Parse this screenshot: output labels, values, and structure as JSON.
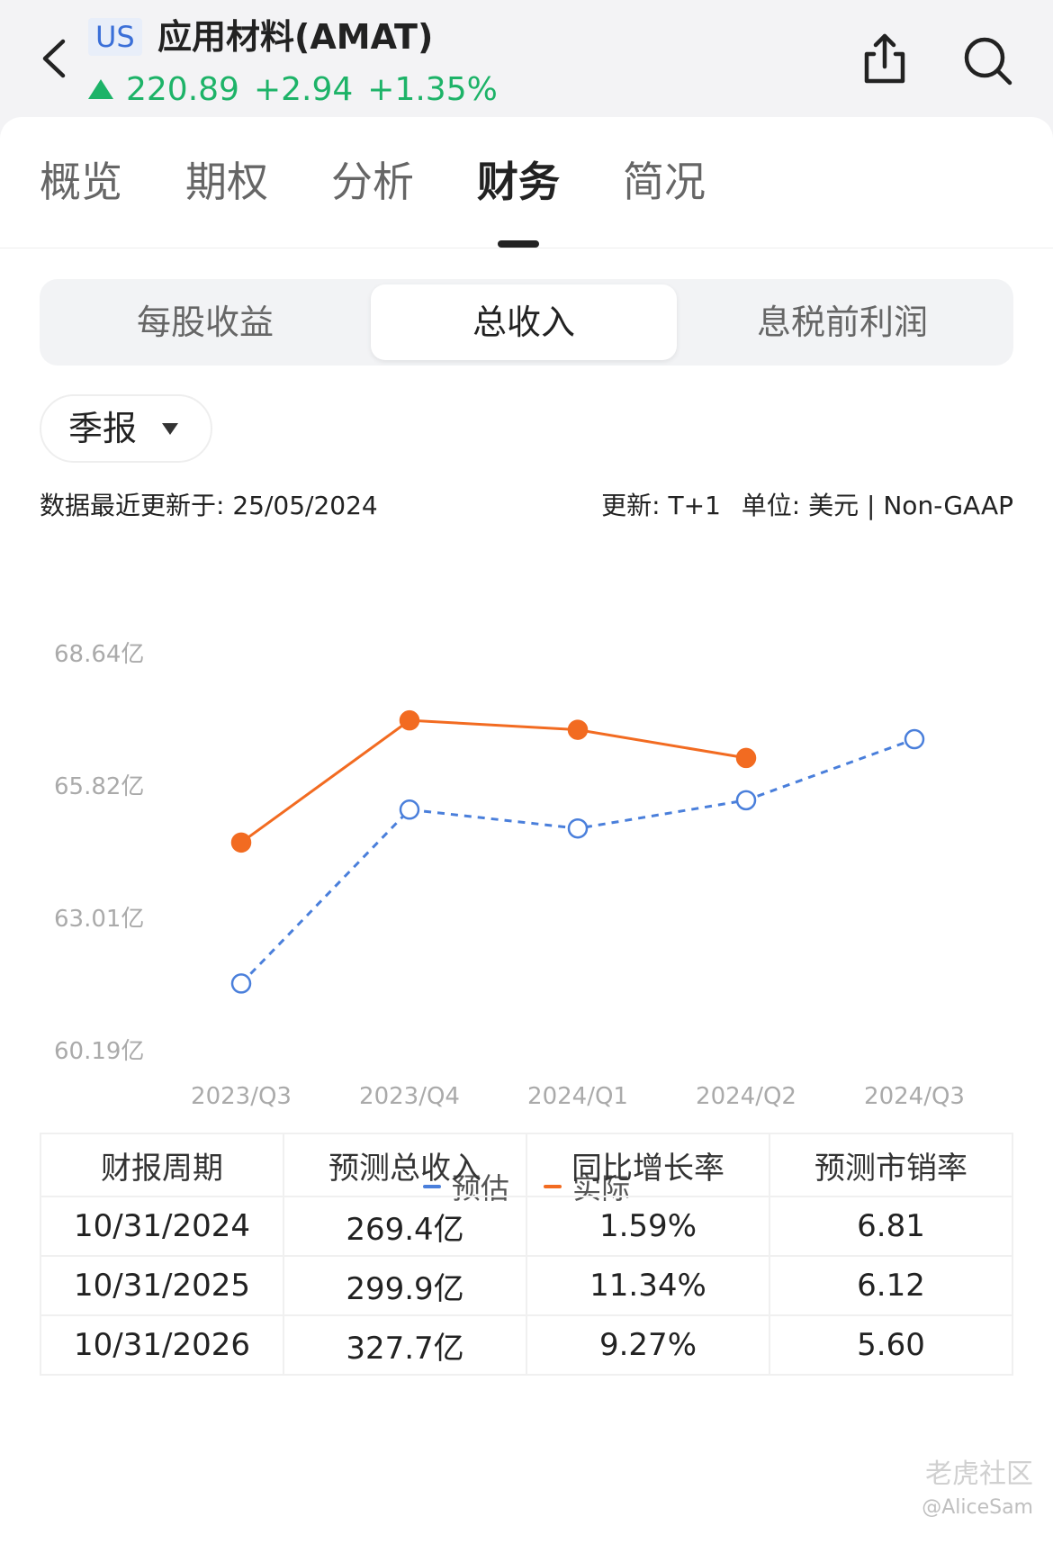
{
  "header": {
    "market_badge": "US",
    "stock_name": "应用材料(AMAT)",
    "price": "220.89",
    "change": "+2.94",
    "change_pct": "+1.35%",
    "icons": [
      "back-icon",
      "share-icon",
      "search-icon"
    ]
  },
  "tabs": [
    {
      "label": "概览"
    },
    {
      "label": "期权"
    },
    {
      "label": "分析"
    },
    {
      "label": "财务",
      "active": true
    },
    {
      "label": "简况"
    }
  ],
  "segments": [
    {
      "label": "每股收益"
    },
    {
      "label": "总收入",
      "active": true
    },
    {
      "label": "息税前利润"
    }
  ],
  "period": {
    "label": "季报"
  },
  "meta": {
    "updated": "数据最近更新于: 25/05/2024",
    "update_freq": "更新: T+1",
    "unit": "单位: 美元 | Non-GAAP"
  },
  "chart_data": {
    "type": "line",
    "categories": [
      "2023/Q3",
      "2023/Q4",
      "2024/Q1",
      "2024/Q2",
      "2024/Q3"
    ],
    "y_ticks": [
      "68.64亿",
      "65.82亿",
      "63.01亿",
      "60.19亿"
    ],
    "ylim": [
      60.19,
      68.64
    ],
    "y_unit": "亿",
    "series": [
      {
        "name": "预估",
        "color": "#4a7fdb",
        "style": "dashed",
        "marker": "hollow",
        "values": [
          61.6,
          65.3,
          64.9,
          65.5,
          66.8
        ]
      },
      {
        "name": "实际",
        "color": "#f26b21",
        "style": "solid",
        "marker": "filled",
        "values": [
          64.6,
          67.2,
          67.0,
          66.4,
          null
        ]
      }
    ],
    "legend_position": "bottom-center",
    "grid": false
  },
  "table": {
    "headers": [
      "财报周期",
      "预测总收入",
      "同比增长率",
      "预测市销率"
    ],
    "rows": [
      [
        "10/31/2024",
        "269.4亿",
        "1.59%",
        "6.81"
      ],
      [
        "10/31/2025",
        "299.9亿",
        "11.34%",
        "6.12"
      ],
      [
        "10/31/2026",
        "327.7亿",
        "9.27%",
        "5.60"
      ]
    ]
  },
  "watermark": {
    "text": "老虎社区",
    "user": "@AliceSam"
  }
}
